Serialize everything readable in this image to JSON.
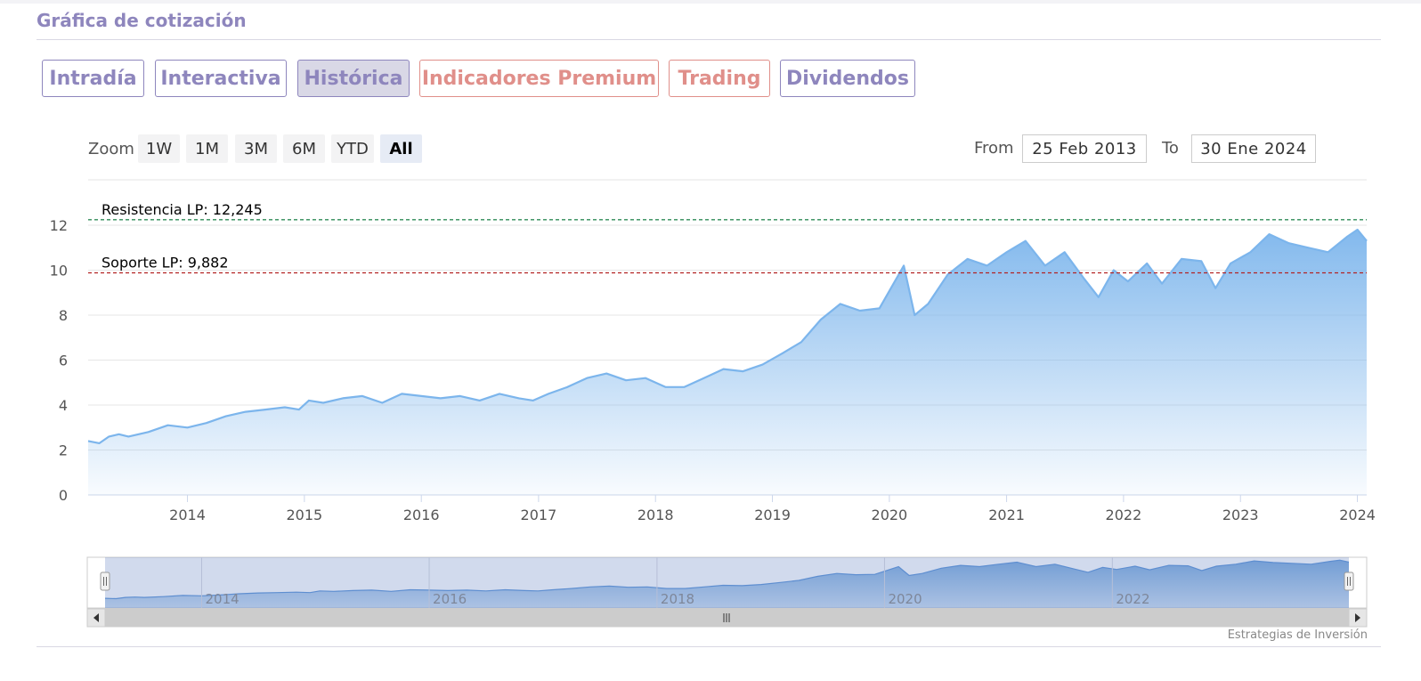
{
  "page": {
    "title": "Gráfica de cotización",
    "credit": "Estrategias de Inversión"
  },
  "tabs": [
    {
      "label": "Intradía",
      "style": "purple"
    },
    {
      "label": "Interactiva",
      "style": "purple"
    },
    {
      "label": "Histórica",
      "style": "purple",
      "active": true
    },
    {
      "label": "Indicadores Premium",
      "style": "salmon"
    },
    {
      "label": "Trading",
      "style": "salmon"
    },
    {
      "label": "Dividendos",
      "style": "purple"
    }
  ],
  "zoom": {
    "label": "Zoom",
    "buttons": [
      "1W",
      "1M",
      "3M",
      "6M",
      "YTD",
      "All"
    ],
    "selected": "All"
  },
  "range": {
    "from_label": "From",
    "from_value": "25 Feb 2013",
    "to_label": "To",
    "to_value": "30 Ene 2024"
  },
  "colors": {
    "series": "#7cb5ec",
    "resistance": "#2e8b57",
    "support": "#b22222",
    "brand": "#8e86bd",
    "premium": "#e08f8a"
  },
  "chart_data": {
    "type": "area",
    "title": "",
    "xlabel": "",
    "ylabel": "",
    "ylim": [
      0,
      12
    ],
    "yticks": [
      "0",
      "2",
      "4",
      "6",
      "8",
      "10",
      "12"
    ],
    "xticks": [
      "2014",
      "2015",
      "2016",
      "2017",
      "2018",
      "2019",
      "2020",
      "2021",
      "2022",
      "2023",
      "2024"
    ],
    "navigator_xticks": [
      "2014",
      "2016",
      "2018",
      "2020",
      "2022",
      "2..."
    ],
    "grid": true,
    "legend": "none",
    "series": [
      {
        "x": [
          "2013-02-25",
          "2013-04-01",
          "2013-05-01",
          "2013-06-01",
          "2013-07-01",
          "2013-09-01",
          "2013-11-01",
          "2014-01-01",
          "2014-03-01",
          "2014-05-01",
          "2014-07-01",
          "2014-09-01",
          "2014-11-01",
          "2014-12-15",
          "2015-01-15",
          "2015-03-01",
          "2015-05-01",
          "2015-07-01",
          "2015-09-01",
          "2015-11-01",
          "2016-01-01",
          "2016-03-01",
          "2016-05-01",
          "2016-07-01",
          "2016-09-01",
          "2016-11-01",
          "2016-12-15",
          "2017-02-01",
          "2017-04-01",
          "2017-06-01",
          "2017-08-01",
          "2017-10-01",
          "2017-12-01",
          "2018-02-01",
          "2018-04-01",
          "2018-06-01",
          "2018-08-01",
          "2018-10-01",
          "2018-12-01",
          "2019-02-01",
          "2019-04-01",
          "2019-06-01",
          "2019-08-01",
          "2019-10-01",
          "2019-12-01",
          "2020-02-15",
          "2020-03-20",
          "2020-05-01",
          "2020-07-01",
          "2020-09-01",
          "2020-11-01",
          "2021-01-01",
          "2021-03-01",
          "2021-05-01",
          "2021-07-01",
          "2021-09-01",
          "2021-10-15",
          "2021-12-01",
          "2022-01-15",
          "2022-03-15",
          "2022-05-01",
          "2022-07-01",
          "2022-09-01",
          "2022-10-15",
          "2022-12-01",
          "2023-02-01",
          "2023-04-01",
          "2023-06-01",
          "2023-08-01",
          "2023-10-01",
          "2023-12-01",
          "2024-01-01",
          "2024-01-30"
        ],
        "values": [
          2.4,
          2.3,
          2.6,
          2.7,
          2.6,
          2.8,
          3.1,
          3.0,
          3.2,
          3.5,
          3.7,
          3.8,
          3.9,
          3.8,
          4.2,
          4.1,
          4.3,
          4.4,
          4.1,
          4.5,
          4.4,
          4.3,
          4.4,
          4.2,
          4.5,
          4.3,
          4.2,
          4.5,
          4.8,
          5.2,
          5.4,
          5.1,
          5.2,
          4.8,
          4.8,
          5.2,
          5.6,
          5.5,
          5.8,
          6.3,
          6.8,
          7.8,
          8.5,
          8.2,
          8.3,
          10.2,
          8.0,
          8.5,
          9.8,
          10.5,
          10.2,
          10.8,
          11.3,
          10.2,
          10.8,
          9.6,
          8.8,
          10.0,
          9.5,
          10.3,
          9.4,
          10.5,
          10.4,
          9.2,
          10.3,
          10.8,
          11.6,
          11.2,
          11.0,
          10.8,
          11.5,
          11.8,
          11.3
        ]
      }
    ],
    "annotations": [
      {
        "label": "Resistencia LP: 12,245",
        "value": 12.245,
        "style": "dashed",
        "color": "#2e8b57"
      },
      {
        "label": "Soporte LP: 9,882",
        "value": 9.882,
        "style": "dashed",
        "color": "#b22222"
      }
    ]
  }
}
